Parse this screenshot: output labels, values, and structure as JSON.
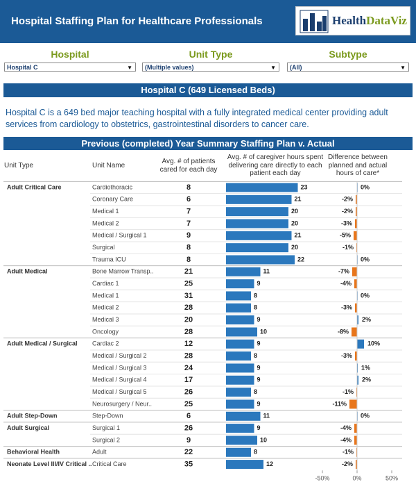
{
  "header": {
    "title": "Hospital Staffing Plan for Healthcare Professionals",
    "logo_primary": "Health",
    "logo_secondary": "DataViz"
  },
  "filters": [
    {
      "label": "Hospital",
      "value": "Hospital C"
    },
    {
      "label": "Unit Type",
      "value": "(Multiple values)"
    },
    {
      "label": "Subtype",
      "value": "(All)"
    }
  ],
  "hospital_banner": "Hospital C (649 Licensed Beds)",
  "description": "Hospital C is a 649 bed major teaching hospital with a  fully integrated medical center providing adult services from cardiology to obstetrics, gastrointestinal disorders to cancer care.",
  "table": {
    "title": "Previous (completed) Year Summary Staffing Plan v. Actual",
    "columns": [
      "Unit Type",
      "Unit Name",
      "Avg. # of patients cared for each day",
      "Avg. # of caregiver hours spent delivering care directly to each patient each day",
      "Difference between planned and actual hours of care*"
    ],
    "groups": [
      {
        "unit_type": "Adult Critical Care",
        "rows": [
          {
            "unit_name": "Cardiothoracic",
            "patients": 8,
            "hours": 23,
            "difference": 0,
            "difference_label": "0%"
          },
          {
            "unit_name": "Coronary Care",
            "patients": 6,
            "hours": 21,
            "difference": -2,
            "difference_label": "-2%"
          },
          {
            "unit_name": "Medical 1",
            "patients": 7,
            "hours": 20,
            "difference": -2,
            "difference_label": "-2%"
          },
          {
            "unit_name": "Medical 2",
            "patients": 7,
            "hours": 20,
            "difference": -3,
            "difference_label": "-3%"
          },
          {
            "unit_name": "Medical / Surgical 1",
            "patients": 9,
            "hours": 21,
            "difference": -5,
            "difference_label": "-5%"
          },
          {
            "unit_name": "Surgical",
            "patients": 8,
            "hours": 20,
            "difference": -1,
            "difference_label": "-1%"
          },
          {
            "unit_name": "Trauma ICU",
            "patients": 8,
            "hours": 22,
            "difference": 0,
            "difference_label": "0%"
          }
        ]
      },
      {
        "unit_type": "Adult Medical",
        "rows": [
          {
            "unit_name": "Bone Marrow Transp..",
            "patients": 21,
            "hours": 11,
            "difference": -7,
            "difference_label": "-7%"
          },
          {
            "unit_name": "Cardiac 1",
            "patients": 25,
            "hours": 9,
            "difference": -4,
            "difference_label": "-4%"
          },
          {
            "unit_name": "Medical 1",
            "patients": 31,
            "hours": 8,
            "difference": 0,
            "difference_label": "0%"
          },
          {
            "unit_name": "Medical 2",
            "patients": 28,
            "hours": 8,
            "difference": -3,
            "difference_label": "-3%"
          },
          {
            "unit_name": "Medical 3",
            "patients": 20,
            "hours": 9,
            "difference": 2,
            "difference_label": "2%"
          },
          {
            "unit_name": "Oncology",
            "patients": 28,
            "hours": 10,
            "difference": -8,
            "difference_label": "-8%"
          }
        ]
      },
      {
        "unit_type": "Adult Medical / Surgical",
        "rows": [
          {
            "unit_name": "Cardiac 2",
            "patients": 12,
            "hours": 9,
            "difference": 10,
            "difference_label": "10%"
          },
          {
            "unit_name": "Medical / Surgical 2",
            "patients": 28,
            "hours": 8,
            "difference": -3,
            "difference_label": "-3%"
          },
          {
            "unit_name": "Medical / Surgical 3",
            "patients": 24,
            "hours": 9,
            "difference": 1,
            "difference_label": "1%"
          },
          {
            "unit_name": "Medical / Surgical 4",
            "patients": 17,
            "hours": 9,
            "difference": 2,
            "difference_label": "2%"
          },
          {
            "unit_name": "Medical / Surgical 5",
            "patients": 26,
            "hours": 8,
            "difference": -1,
            "difference_label": "-1%"
          },
          {
            "unit_name": "Neurosurgery / Neur..",
            "patients": 25,
            "hours": 9,
            "difference": -11,
            "difference_label": "-11%"
          }
        ]
      },
      {
        "unit_type": "Adult Step-Down",
        "rows": [
          {
            "unit_name": "Step-Down",
            "patients": 6,
            "hours": 11,
            "difference": 0,
            "difference_label": "0%"
          }
        ]
      },
      {
        "unit_type": "Adult Surgical",
        "rows": [
          {
            "unit_name": "Surgical 1",
            "patients": 26,
            "hours": 9,
            "difference": -4,
            "difference_label": "-4%"
          },
          {
            "unit_name": "Surgical 2",
            "patients": 9,
            "hours": 10,
            "difference": -4,
            "difference_label": "-4%"
          }
        ]
      },
      {
        "unit_type": "Behavioral Health",
        "rows": [
          {
            "unit_name": "Adult",
            "patients": 22,
            "hours": 8,
            "difference": -1,
            "difference_label": "-1%"
          }
        ]
      },
      {
        "unit_type": "Neonate Level III/IV Critical ..",
        "rows": [
          {
            "unit_name": "Critical Care",
            "patients": 35,
            "hours": 12,
            "difference": -2,
            "difference_label": "-2%"
          }
        ]
      }
    ]
  },
  "difference_axis": {
    "xlim": [
      -65,
      65
    ],
    "xticks": [
      {
        "value": -50,
        "label": "-50%"
      },
      {
        "value": 0,
        "label": "0%"
      },
      {
        "value": 50,
        "label": "50%"
      }
    ]
  }
}
